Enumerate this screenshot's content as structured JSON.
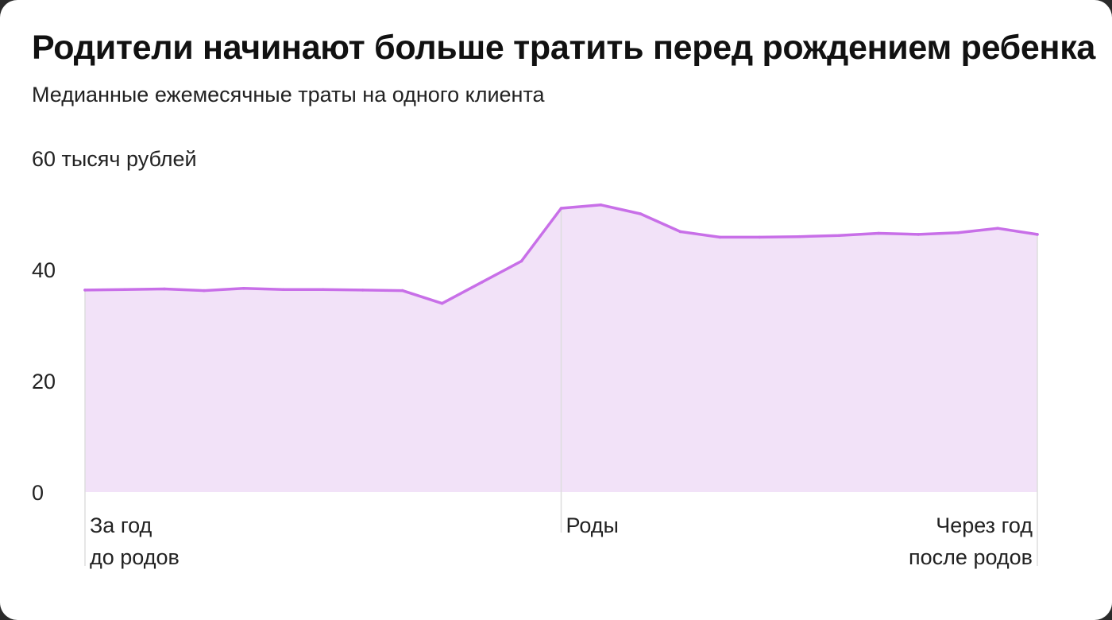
{
  "header": {
    "title": "Родители начинают больше тратить перед рождением ребенка",
    "subtitle": "Медианные ежемесячные траты на одного клиента"
  },
  "colors": {
    "line": "#c86fe8",
    "fill": "#f2e2f8",
    "vline": "#dddddd"
  },
  "chart_data": {
    "type": "area",
    "title": "Родители начинают больше тратить перед рождением ребенка",
    "subtitle": "Медианные ежемесячные траты на одного клиента",
    "y_unit_label": "60 тысяч рублей",
    "ylim": [
      0,
      60
    ],
    "y_ticks": [
      {
        "value": 0,
        "label": "0"
      },
      {
        "value": 20,
        "label": "20"
      },
      {
        "value": 40,
        "label": "40"
      },
      {
        "value": 60,
        "label": "60 тысяч рублей"
      }
    ],
    "x": [
      -12,
      -11,
      -10,
      -9,
      -8,
      -7,
      -6,
      -5,
      -4,
      -3,
      -2,
      -1,
      0,
      1,
      2,
      3,
      4,
      5,
      6,
      7,
      8,
      9,
      10,
      11,
      12
    ],
    "xlim": [
      -12,
      12
    ],
    "values": [
      36.3,
      36.4,
      36.5,
      36.2,
      36.6,
      36.4,
      36.4,
      36.3,
      36.2,
      33.9,
      37.7,
      41.5,
      51.0,
      51.6,
      50.0,
      46.8,
      45.8,
      45.8,
      45.9,
      46.1,
      46.5,
      46.3,
      46.6,
      47.4,
      46.3
    ],
    "x_markers": [
      {
        "x": -12,
        "lines": [
          "За год",
          "до родов"
        ],
        "align": "start"
      },
      {
        "x": 0,
        "lines": [
          "Роды"
        ],
        "align": "start"
      },
      {
        "x": 12,
        "lines": [
          "Через год",
          "после родов"
        ],
        "align": "end"
      }
    ],
    "grid": false
  }
}
